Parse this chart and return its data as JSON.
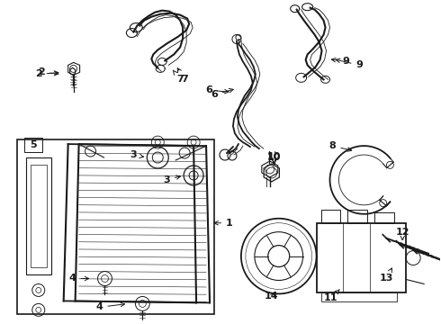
{
  "bg_color": "#ffffff",
  "line_color": "#1a1a1a",
  "fig_width": 4.9,
  "fig_height": 3.6,
  "dpi": 100
}
